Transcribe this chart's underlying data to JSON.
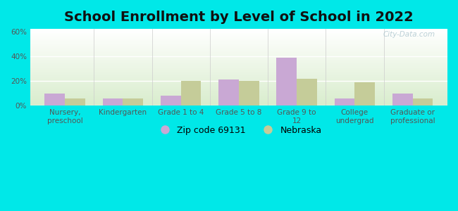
{
  "title": "School Enrollment by Level of School in 2022",
  "categories": [
    "Nursery,\npreschool",
    "Kindergarten",
    "Grade 1 to 4",
    "Grade 5 to 8",
    "Grade 9 to\n12",
    "College\nundergrad",
    "Graduate or\nprofessional"
  ],
  "zip_values": [
    10,
    6,
    8,
    21,
    39,
    6,
    10
  ],
  "nebraska_values": [
    6,
    6,
    20,
    20,
    22,
    19,
    6
  ],
  "zip_color": "#c9a8d4",
  "nebraska_color": "#c5cc99",
  "zip_label": "Zip code 69131",
  "nebraska_label": "Nebraska",
  "ylim": [
    0,
    62
  ],
  "yticks": [
    0,
    20,
    40,
    60
  ],
  "ytick_labels": [
    "0%",
    "20%",
    "40%",
    "60%"
  ],
  "background_color": "#00e8e8",
  "plot_bg_top": "#ffffff",
  "plot_bg_bottom": "#d8eccc",
  "title_fontsize": 14,
  "tick_fontsize": 7.5,
  "legend_fontsize": 9,
  "watermark": "City-Data.com",
  "bar_width": 0.35
}
